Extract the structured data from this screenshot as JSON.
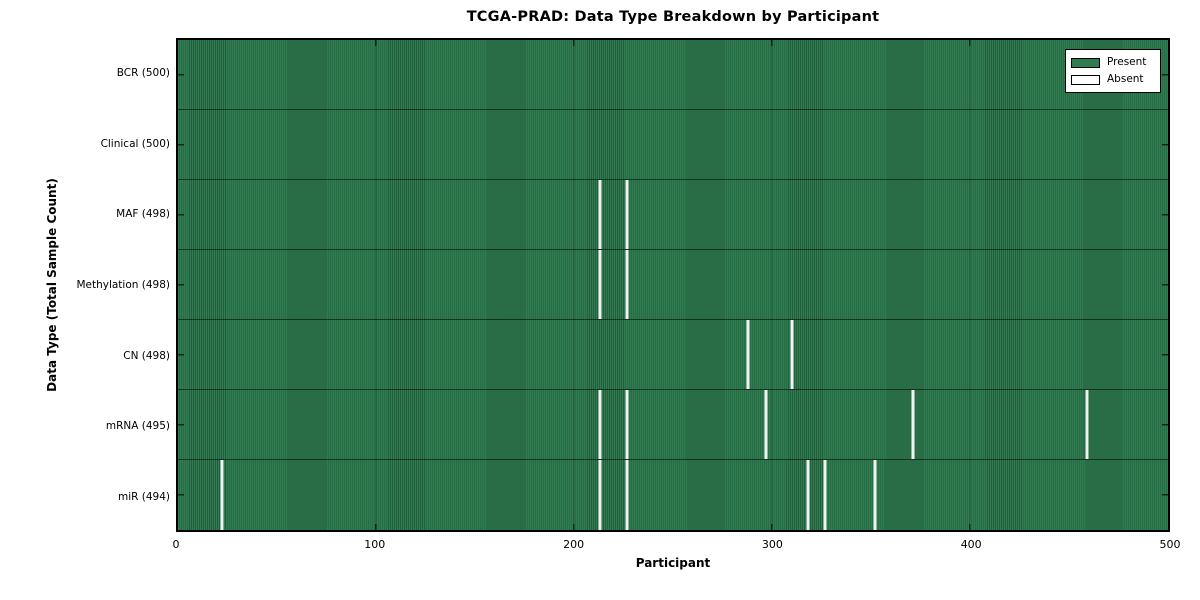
{
  "chart_data": {
    "type": "heatmap",
    "title": "TCGA-PRAD: Data Type Breakdown by Participant",
    "xlabel": "Participant",
    "ylabel": "Data Type (Total Sample Count)",
    "xlim": [
      0,
      500
    ],
    "x_ticks": [
      0,
      100,
      200,
      300,
      400,
      500
    ],
    "n_participants": 500,
    "grid": "vertical lines at x ticks",
    "legend_position": "upper right",
    "legend": [
      {
        "label": "Present",
        "color": "#2f7c51"
      },
      {
        "label": "Absent",
        "color": "#ffffff"
      }
    ],
    "rows": [
      {
        "name": "bcr",
        "label": "BCR (500)",
        "total": 500,
        "absent_participants": []
      },
      {
        "name": "clinical",
        "label": "Clinical (500)",
        "total": 500,
        "absent_participants": []
      },
      {
        "name": "maf",
        "label": "MAF (498)",
        "total": 498,
        "absent_participants": [
          213,
          227
        ]
      },
      {
        "name": "methylation",
        "label": "Methylation (498)",
        "total": 498,
        "absent_participants": [
          213,
          227
        ]
      },
      {
        "name": "cn",
        "label": "CN (498)",
        "total": 498,
        "absent_participants": [
          288,
          310
        ]
      },
      {
        "name": "mrna",
        "label": "mRNA (495)",
        "total": 495,
        "absent_participants": [
          213,
          227,
          297,
          371,
          459
        ]
      },
      {
        "name": "mir",
        "label": "miR (494)",
        "total": 494,
        "absent_participants": [
          22,
          213,
          227,
          318,
          327,
          352
        ]
      }
    ],
    "colors": {
      "present_fill": "#2f7c51",
      "present_stripe": "#235e3d",
      "absent_mark": "#f1f1f1",
      "axis": "#000000",
      "background": "#ffffff"
    }
  }
}
